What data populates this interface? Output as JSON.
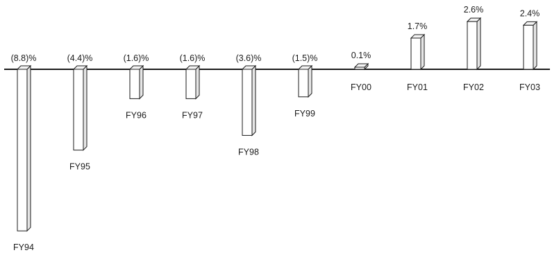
{
  "chart_data": {
    "type": "bar",
    "categories": [
      "FY94",
      "FY95",
      "FY96",
      "FY97",
      "FY98",
      "FY99",
      "FY00",
      "FY01",
      "FY02",
      "FY03"
    ],
    "values": [
      -8.8,
      -4.4,
      -1.6,
      -1.6,
      -3.6,
      -1.5,
      0.1,
      1.7,
      2.6,
      2.4
    ],
    "value_labels": [
      "(8.8)%",
      "(4.4)%",
      "(1.6)%",
      "(1.6)%",
      "(3.6)%",
      "(1.5)%",
      "0.1%",
      "1.7%",
      "2.6%",
      "2.4%"
    ],
    "title": "",
    "xlabel": "",
    "ylabel": "",
    "grid": false,
    "bar_style": "3d-outline",
    "colors": {
      "bar_fill": "#ffffff",
      "bar_side": "#e6e6e6",
      "bar_top": "#f4f4f4",
      "stroke": "#1a1a1a",
      "baseline": "#1a1a1a"
    }
  }
}
